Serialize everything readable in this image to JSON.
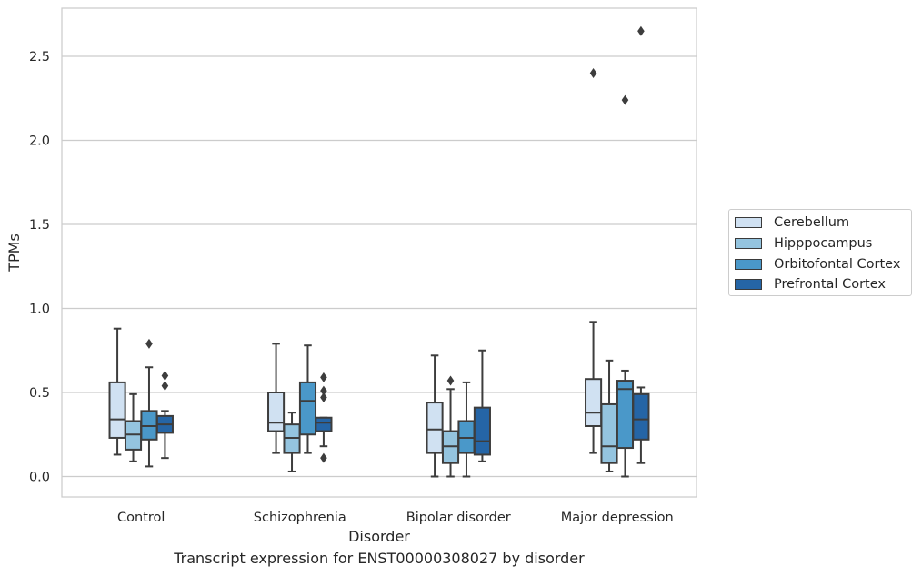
{
  "chart_data": {
    "type": "box",
    "xlabel": "Disorder",
    "ylabel": "TPMs",
    "caption": "Transcript expression for ENST00000308027 by disorder",
    "ylim": [
      -0.12,
      2.8
    ],
    "yticks": [
      0.0,
      0.5,
      1.0,
      1.5,
      2.0,
      2.5
    ],
    "ytick_labels": [
      "0.0",
      "0.5",
      "1.0",
      "1.5",
      "2.0",
      "2.5"
    ],
    "grid": "horizontal",
    "legend_position": "right",
    "categories": [
      "Control",
      "Schizophrenia",
      "Bipolar disorder",
      "Major depression"
    ],
    "series": [
      {
        "name": "Cerebellum",
        "color": "#d0e1f2",
        "boxes": [
          {
            "whisker_low": 0.13,
            "q1": 0.23,
            "median": 0.34,
            "q3": 0.56,
            "whisker_high": 0.88,
            "outliers": []
          },
          {
            "whisker_low": 0.14,
            "q1": 0.27,
            "median": 0.32,
            "q3": 0.5,
            "whisker_high": 0.79,
            "outliers": []
          },
          {
            "whisker_low": 0.0,
            "q1": 0.14,
            "median": 0.28,
            "q3": 0.44,
            "whisker_high": 0.72,
            "outliers": []
          },
          {
            "whisker_low": 0.14,
            "q1": 0.3,
            "median": 0.38,
            "q3": 0.58,
            "whisker_high": 0.92,
            "outliers": [
              2.4
            ]
          }
        ]
      },
      {
        "name": "Hipppocampus",
        "color": "#94c4df",
        "boxes": [
          {
            "whisker_low": 0.09,
            "q1": 0.16,
            "median": 0.25,
            "q3": 0.33,
            "whisker_high": 0.49,
            "outliers": []
          },
          {
            "whisker_low": 0.03,
            "q1": 0.14,
            "median": 0.23,
            "q3": 0.31,
            "whisker_high": 0.38,
            "outliers": []
          },
          {
            "whisker_low": 0.0,
            "q1": 0.08,
            "median": 0.18,
            "q3": 0.27,
            "whisker_high": 0.52,
            "outliers": [
              0.57
            ]
          },
          {
            "whisker_low": 0.03,
            "q1": 0.08,
            "median": 0.18,
            "q3": 0.43,
            "whisker_high": 0.69,
            "outliers": []
          }
        ]
      },
      {
        "name": "Orbitofontal Cortex",
        "color": "#4a98c9",
        "boxes": [
          {
            "whisker_low": 0.06,
            "q1": 0.22,
            "median": 0.3,
            "q3": 0.39,
            "whisker_high": 0.65,
            "outliers": [
              0.79
            ]
          },
          {
            "whisker_low": 0.14,
            "q1": 0.25,
            "median": 0.45,
            "q3": 0.56,
            "whisker_high": 0.78,
            "outliers": []
          },
          {
            "whisker_low": 0.0,
            "q1": 0.14,
            "median": 0.23,
            "q3": 0.33,
            "whisker_high": 0.56,
            "outliers": []
          },
          {
            "whisker_low": 0.0,
            "q1": 0.17,
            "median": 0.52,
            "q3": 0.57,
            "whisker_high": 0.63,
            "outliers": [
              2.24
            ]
          }
        ]
      },
      {
        "name": "Prefrontal Cortex",
        "color": "#2565a6",
        "boxes": [
          {
            "whisker_low": 0.11,
            "q1": 0.26,
            "median": 0.31,
            "q3": 0.36,
            "whisker_high": 0.39,
            "outliers": [
              0.54,
              0.6
            ]
          },
          {
            "whisker_low": 0.18,
            "q1": 0.27,
            "median": 0.32,
            "q3": 0.35,
            "whisker_high": 0.35,
            "outliers": [
              0.11,
              0.47,
              0.51,
              0.59
            ]
          },
          {
            "whisker_low": 0.09,
            "q1": 0.13,
            "median": 0.21,
            "q3": 0.41,
            "whisker_high": 0.75,
            "outliers": []
          },
          {
            "whisker_low": 0.08,
            "q1": 0.22,
            "median": 0.34,
            "q3": 0.49,
            "whisker_high": 0.53,
            "outliers": [
              2.65
            ]
          }
        ]
      }
    ]
  }
}
